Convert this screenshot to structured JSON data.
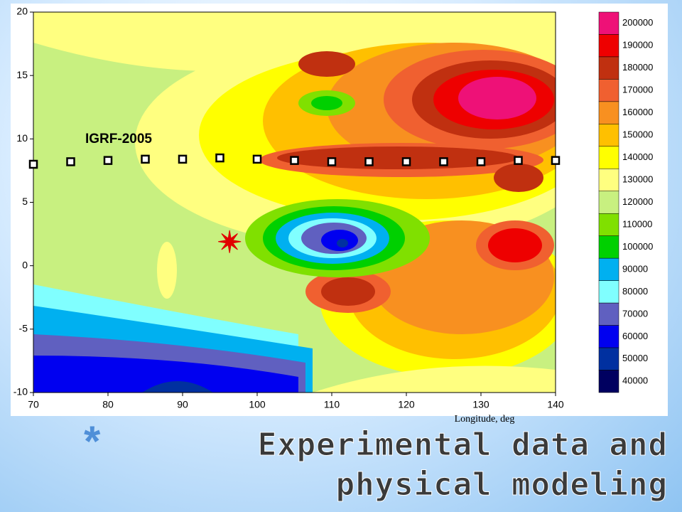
{
  "slide": {
    "bullet": "*",
    "title": "Experimental data and physical modeling"
  },
  "chart_data": {
    "type": "contour",
    "annotation": "IGRF-2005",
    "xlabel": "Longitude, deg",
    "xlim": [
      70,
      140
    ],
    "ylim": [
      -10,
      20
    ],
    "xticks": [
      70,
      80,
      90,
      100,
      110,
      120,
      130,
      140
    ],
    "yticks": [
      -10,
      -5,
      0,
      5,
      10,
      15,
      20
    ],
    "levels": [
      200000,
      190000,
      180000,
      170000,
      160000,
      150000,
      140000,
      130000,
      120000,
      110000,
      100000,
      90000,
      80000,
      70000,
      60000,
      50000,
      40000
    ],
    "level_colors": [
      "#ee1177",
      "#ee0000",
      "#c03010",
      "#f06030",
      "#f89020",
      "#ffc000",
      "#ffff00",
      "#ffff80",
      "#c8f080",
      "#80e000",
      "#00d000",
      "#00b0f0",
      "#80ffff",
      "#6060c0",
      "#0000f0",
      "#0030a0",
      "#000060"
    ],
    "stations": {
      "x": [
        70,
        75,
        80,
        85,
        90,
        95,
        100,
        105,
        110,
        115,
        120,
        125,
        130,
        135,
        140
      ],
      "y": [
        8,
        8.2,
        8.3,
        8.4,
        8.4,
        8.5,
        8.4,
        8.3,
        8.2,
        8.2,
        8.2,
        8.2,
        8.2,
        8.3,
        8.3
      ]
    },
    "epicenter": {
      "x": 96.3,
      "y": 1.9
    }
  }
}
